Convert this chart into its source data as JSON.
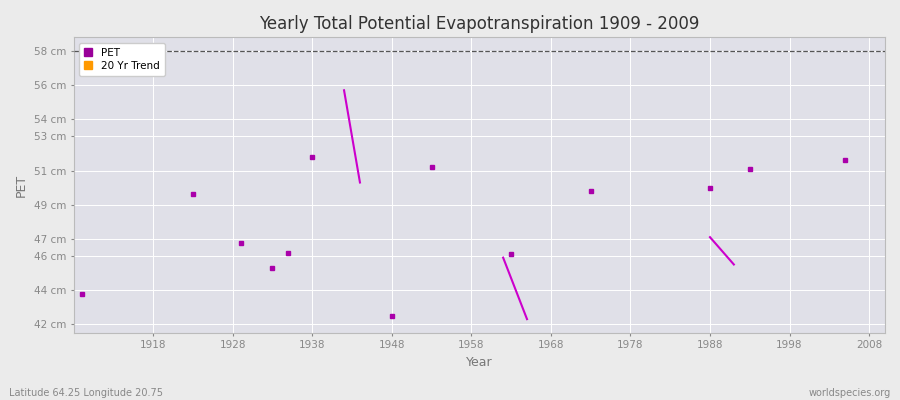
{
  "title": "Yearly Total Potential Evapotranspiration 1909 - 2009",
  "xlabel": "Year",
  "ylabel": "PET",
  "subtitle_left": "Latitude 64.25 Longitude 20.75",
  "subtitle_right": "worldspecies.org",
  "ylim": [
    41.5,
    58.8
  ],
  "xlim": [
    1908,
    2010
  ],
  "ytick_positions": [
    42,
    44,
    46,
    47,
    49,
    51,
    53,
    54,
    56,
    58
  ],
  "ytick_labels": [
    "42 cm",
    "44 cm",
    "46 cm",
    "47 cm",
    "49 cm",
    "51 cm",
    "53 cm",
    "54 cm",
    "56 cm",
    "58 cm"
  ],
  "xticks": [
    1918,
    1928,
    1938,
    1948,
    1958,
    1968,
    1978,
    1988,
    1998,
    2008
  ],
  "pet_x": [
    1909,
    1923,
    1929,
    1933,
    1935,
    1938,
    1948,
    1953,
    1963,
    1973,
    1988,
    1993,
    2005
  ],
  "pet_y": [
    43.8,
    49.6,
    46.75,
    45.3,
    46.15,
    51.8,
    42.5,
    51.2,
    46.1,
    49.8,
    50.0,
    51.1,
    51.6
  ],
  "trend_segments": [
    {
      "x": [
        1942,
        1944
      ],
      "y": [
        55.7,
        50.3
      ]
    },
    {
      "x": [
        1962,
        1965
      ],
      "y": [
        45.9,
        42.3
      ]
    },
    {
      "x": [
        1988,
        1991
      ],
      "y": [
        47.1,
        45.5
      ]
    }
  ],
  "pet_color": "#aa00aa",
  "trend_color": "#cc00cc",
  "dashed_line_y": 58,
  "background_color": "#ebebeb",
  "plot_bg_color": "#e0e0e8",
  "grid_color": "#ffffff",
  "legend_pet_color": "#990099",
  "legend_trend_color": "#ff9900"
}
